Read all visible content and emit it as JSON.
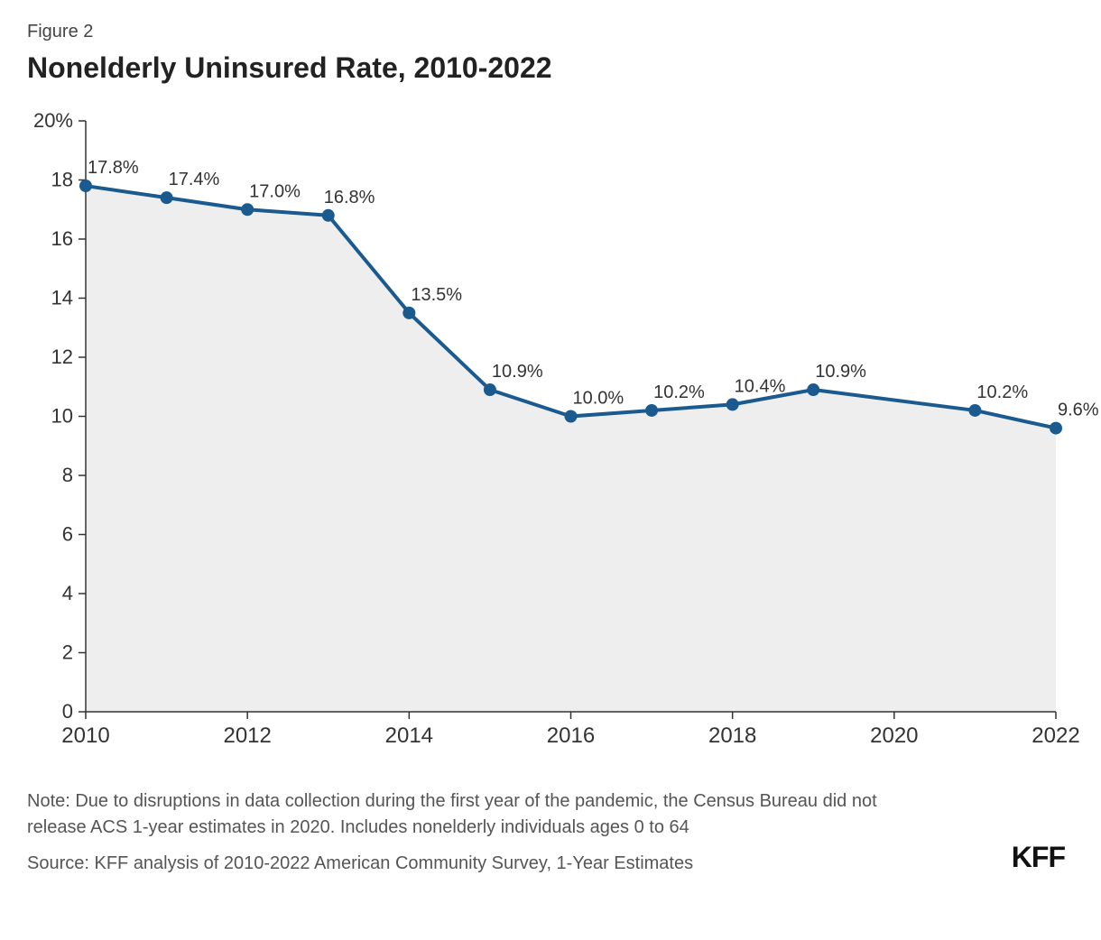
{
  "figure_label": "Figure 2",
  "title": "Nonelderly Uninsured Rate, 2010-2022",
  "chart": {
    "type": "line-area",
    "years": [
      2010,
      2011,
      2012,
      2013,
      2014,
      2015,
      2016,
      2017,
      2018,
      2019,
      2021,
      2022
    ],
    "values": [
      17.8,
      17.4,
      17.0,
      16.8,
      13.5,
      10.9,
      10.0,
      10.2,
      10.4,
      10.9,
      10.2,
      9.6
    ],
    "labels": [
      "17.8%",
      "17.4%",
      "17.0%",
      "16.8%",
      "13.5%",
      "10.9%",
      "10.0%",
      "10.2%",
      "10.4%",
      "10.9%",
      "10.2%",
      "9.6%"
    ],
    "x_domain": [
      2010,
      2022
    ],
    "y_domain": [
      0,
      20
    ],
    "y_ticks": [
      0,
      2,
      4,
      6,
      8,
      10,
      12,
      14,
      16,
      18,
      20
    ],
    "y_tick_labels": [
      "0",
      "2",
      "4",
      "6",
      "8",
      "10",
      "12",
      "14",
      "16",
      "18",
      "20%"
    ],
    "x_ticks": [
      2010,
      2012,
      2014,
      2016,
      2018,
      2020,
      2022
    ],
    "x_tick_labels": [
      "2010",
      "2012",
      "2014",
      "2016",
      "2018",
      "2020",
      "2022"
    ],
    "line_color": "#1b5a8f",
    "line_width": 4,
    "marker_radius": 7,
    "marker_fill": "#1b5a8f",
    "marker_stroke": "#ffffff",
    "fill_color": "#eeeeee",
    "axis_color": "#333333",
    "tick_font_size": 22,
    "label_font_size": 20,
    "label_color": "#333333",
    "background": "#ffffff"
  },
  "note": "Note: Due to disruptions in data collection during the first year of the pandemic, the Census Bureau did not release ACS 1-year estimates in 2020. Includes nonelderly individuals ages 0 to 64",
  "source": "Source: KFF analysis of 2010-2022 American Community Survey, 1-Year Estimates",
  "logo": "KFF"
}
